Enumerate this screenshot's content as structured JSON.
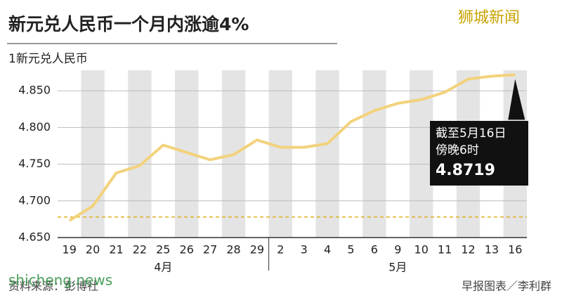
{
  "chart_data": {
    "type": "line",
    "title": "新元兑人民币一个月内涨逾4%",
    "y_label": "1新元兑人民币",
    "categories": [
      "19",
      "20",
      "21",
      "22",
      "25",
      "26",
      "27",
      "28",
      "29",
      "2",
      "3",
      "4",
      "5",
      "6",
      "9",
      "10",
      "11",
      "12",
      "13",
      "16"
    ],
    "months": [
      "4月",
      "5月"
    ],
    "series": [
      {
        "name": "新元兑人民币",
        "color": "#f2d27c",
        "values": [
          4.673,
          4.693,
          4.738,
          4.748,
          4.776,
          4.766,
          4.756,
          4.763,
          4.783,
          4.773,
          4.773,
          4.778,
          4.808,
          4.823,
          4.833,
          4.838,
          4.848,
          4.866,
          4.87,
          4.8719
        ]
      }
    ],
    "ylim": [
      4.65,
      4.878
    ],
    "yticks": [
      {
        "value": 4.65,
        "label": "4.650"
      },
      {
        "value": 4.7,
        "label": "4.700"
      },
      {
        "value": 4.75,
        "label": "4.750"
      },
      {
        "value": 4.8,
        "label": "4.800"
      },
      {
        "value": 4.85,
        "label": "4.850"
      }
    ],
    "reference_line": 4.678,
    "annotation": [
      "截至5月16日",
      "傍晚6时"
    ],
    "source": "资料来源：彭博社",
    "credit": "早报图表／李利群",
    "watermark": "狮城新闻",
    "site": "shicheng.news"
  }
}
